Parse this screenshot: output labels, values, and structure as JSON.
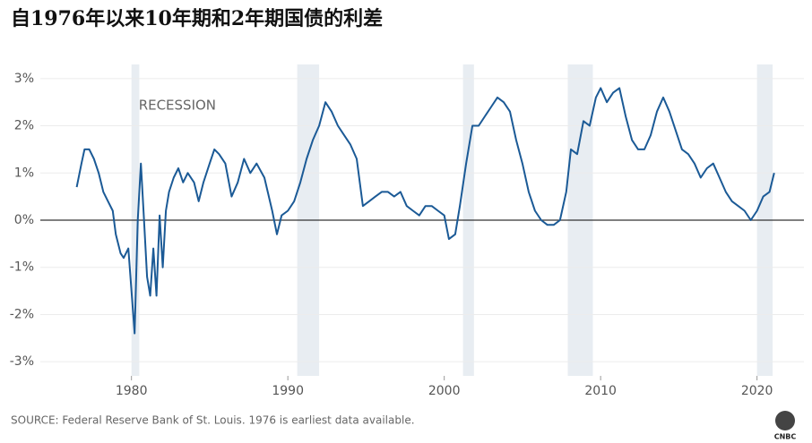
{
  "chart_data": {
    "type": "line",
    "title": "自1976年以来10年期和2年期国债的利差",
    "source": "SOURCE: Federal Reserve Bank of St. Louis. 1976 is earliest data available.",
    "logo": "CNBC",
    "recession_label": "RECESSION",
    "recessions": [
      [
        1980.0,
        1980.5
      ],
      [
        1990.6,
        1992.0
      ],
      [
        2001.2,
        2001.9
      ],
      [
        2007.9,
        2009.5
      ],
      [
        2020.0,
        2021.0
      ]
    ],
    "xlim": [
      1974,
      2023
    ],
    "xticks": [
      1980,
      1990,
      2000,
      2010,
      2020
    ],
    "ylim": [
      -3.3,
      3.3
    ],
    "yticks": [
      {
        "value": 3,
        "label": "3%"
      },
      {
        "value": 2,
        "label": "2%"
      },
      {
        "value": 1,
        "label": "1%"
      },
      {
        "value": 0,
        "label": "0%"
      },
      {
        "value": -1,
        "label": "-1%"
      },
      {
        "value": -2,
        "label": "-2%"
      },
      {
        "value": -3,
        "label": "-3%"
      }
    ],
    "grid": true,
    "x": [
      1976.5,
      1976.8,
      1977.0,
      1977.3,
      1977.6,
      1977.9,
      1978.2,
      1978.5,
      1978.8,
      1979.0,
      1979.3,
      1979.5,
      1979.8,
      1980.0,
      1980.2,
      1980.4,
      1980.6,
      1980.8,
      1981.0,
      1981.2,
      1981.4,
      1981.6,
      1981.8,
      1982.0,
      1982.2,
      1982.4,
      1982.7,
      1983.0,
      1983.3,
      1983.6,
      1984.0,
      1984.3,
      1984.6,
      1985.0,
      1985.3,
      1985.6,
      1986.0,
      1986.4,
      1986.8,
      1987.2,
      1987.6,
      1988.0,
      1988.5,
      1989.0,
      1989.3,
      1989.6,
      1990.0,
      1990.4,
      1990.8,
      1991.2,
      1991.6,
      1992.0,
      1992.4,
      1992.8,
      1993.2,
      1993.6,
      1994.0,
      1994.4,
      1994.8,
      1995.2,
      1995.6,
      1996.0,
      1996.4,
      1996.8,
      1997.2,
      1997.6,
      1998.0,
      1998.4,
      1998.8,
      1999.2,
      1999.6,
      2000.0,
      2000.3,
      2000.7,
      2001.0,
      2001.4,
      2001.8,
      2002.2,
      2002.6,
      2003.0,
      2003.4,
      2003.8,
      2004.2,
      2004.6,
      2005.0,
      2005.4,
      2005.8,
      2006.2,
      2006.6,
      2007.0,
      2007.4,
      2007.8,
      2008.1,
      2008.5,
      2008.9,
      2009.3,
      2009.7,
      2010.0,
      2010.4,
      2010.8,
      2011.2,
      2011.6,
      2012.0,
      2012.4,
      2012.8,
      2013.2,
      2013.6,
      2014.0,
      2014.4,
      2014.8,
      2015.2,
      2015.6,
      2016.0,
      2016.4,
      2016.8,
      2017.2,
      2017.6,
      2018.0,
      2018.4,
      2018.8,
      2019.2,
      2019.6,
      2020.0,
      2020.4,
      2020.8,
      2021.1
    ],
    "series": [
      {
        "name": "10Y-2Y",
        "color": "#1b5a96",
        "values": [
          0.7,
          1.2,
          1.5,
          1.5,
          1.3,
          1.0,
          0.6,
          0.4,
          0.2,
          -0.3,
          -0.7,
          -0.8,
          -0.6,
          -1.5,
          -2.4,
          0.0,
          1.2,
          0.0,
          -1.2,
          -1.6,
          -0.6,
          -1.6,
          0.1,
          -1.0,
          0.2,
          0.6,
          0.9,
          1.1,
          0.8,
          1.0,
          0.8,
          0.4,
          0.8,
          1.2,
          1.5,
          1.4,
          1.2,
          0.5,
          0.8,
          1.3,
          1.0,
          1.2,
          0.9,
          0.2,
          -0.3,
          0.1,
          0.2,
          0.4,
          0.8,
          1.3,
          1.7,
          2.0,
          2.5,
          2.3,
          2.0,
          1.8,
          1.6,
          1.3,
          0.3,
          0.4,
          0.5,
          0.6,
          0.6,
          0.5,
          0.6,
          0.3,
          0.2,
          0.1,
          0.3,
          0.3,
          0.2,
          0.1,
          -0.4,
          -0.3,
          0.3,
          1.2,
          2.0,
          2.0,
          2.2,
          2.4,
          2.6,
          2.5,
          2.3,
          1.7,
          1.2,
          0.6,
          0.2,
          0.0,
          -0.1,
          -0.1,
          0.0,
          0.6,
          1.5,
          1.4,
          2.1,
          2.0,
          2.6,
          2.8,
          2.5,
          2.7,
          2.8,
          2.2,
          1.7,
          1.5,
          1.5,
          1.8,
          2.3,
          2.6,
          2.3,
          1.9,
          1.5,
          1.4,
          1.2,
          0.9,
          1.1,
          1.2,
          0.9,
          0.6,
          0.4,
          0.3,
          0.2,
          0.0,
          0.2,
          0.5,
          0.6,
          1.0
        ]
      }
    ]
  }
}
